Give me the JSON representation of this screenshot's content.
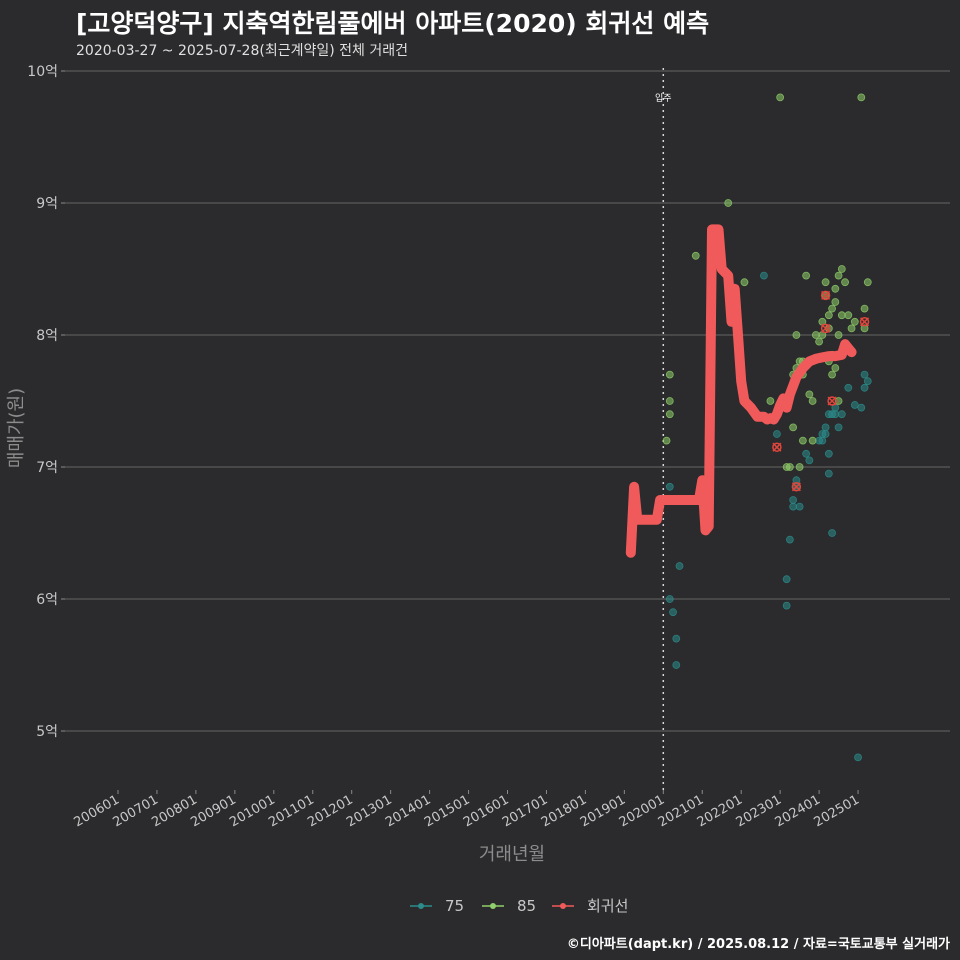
{
  "title": "[고양덕양구] 지축역한림풀에버 아파트(2020) 회귀선 예측",
  "subtitle": "2020-03-27 ~ 2025-07-28(최근계약일) 전체 거래건",
  "caption": "©디아파트(dapt.kr) / 2025.08.12 / 자료=국토교통부 실거래가",
  "colors": {
    "background": "#2b2a2c",
    "grid": "#5a5a5a",
    "s75": "#2a8d8c",
    "s85": "#8fd06a",
    "regression": "#f15a5a",
    "highlight": "#e0463c"
  },
  "chart_data": {
    "type": "scatter",
    "xlabel": "거래년월",
    "ylabel": "매매가(원)",
    "x_ticks": [
      "200601",
      "200701",
      "200801",
      "200901",
      "201001",
      "201101",
      "201201",
      "201301",
      "201401",
      "201501",
      "201601",
      "201701",
      "201801",
      "201901",
      "202001",
      "202101",
      "202201",
      "202301",
      "202401",
      "202501"
    ],
    "xlim": [
      "2005-01",
      "2025-12"
    ],
    "y_ticks": [
      5,
      6,
      7,
      8,
      9,
      10
    ],
    "y_tick_labels": [
      "5억",
      "6억",
      "7억",
      "8억",
      "9억",
      "10억"
    ],
    "y_unit": "억",
    "ylim": [
      4.6,
      10.1
    ],
    "grid": true,
    "vline": {
      "x": "2020-01",
      "label": "입주"
    },
    "legend": {
      "position": "bottom",
      "entries": [
        "75",
        "85",
        "회귀선"
      ]
    },
    "series": [
      {
        "name": "75",
        "points": [
          [
            "2020-03",
            6.85
          ],
          [
            "2020-03",
            6.0
          ],
          [
            "2020-04",
            5.9
          ],
          [
            "2020-05",
            5.7
          ],
          [
            "2020-05",
            5.5
          ],
          [
            "2020-06",
            6.25
          ],
          [
            "2022-08",
            8.45
          ],
          [
            "2022-12",
            7.25
          ],
          [
            "2023-03",
            6.15
          ],
          [
            "2023-03",
            5.95
          ],
          [
            "2023-04",
            6.45
          ],
          [
            "2023-05",
            6.75
          ],
          [
            "2023-05",
            6.7
          ],
          [
            "2023-06",
            6.9
          ],
          [
            "2023-06",
            6.85
          ],
          [
            "2023-07",
            6.7
          ],
          [
            "2023-09",
            7.1
          ],
          [
            "2023-10",
            7.05
          ],
          [
            "2024-01",
            7.2
          ],
          [
            "2024-02",
            7.2
          ],
          [
            "2024-02",
            7.25
          ],
          [
            "2024-03",
            7.3
          ],
          [
            "2024-03",
            7.25
          ],
          [
            "2024-04",
            7.1
          ],
          [
            "2024-04",
            7.4
          ],
          [
            "2024-04",
            6.95
          ],
          [
            "2024-05",
            7.4
          ],
          [
            "2024-05",
            6.5
          ],
          [
            "2024-06",
            7.4
          ],
          [
            "2024-06",
            7.45
          ],
          [
            "2024-07",
            7.3
          ],
          [
            "2024-08",
            7.4
          ],
          [
            "2024-10",
            7.6
          ],
          [
            "2024-12",
            7.47
          ],
          [
            "2025-01",
            4.8
          ],
          [
            "2025-02",
            7.45
          ],
          [
            "2025-03",
            7.6
          ],
          [
            "2025-03",
            7.7
          ],
          [
            "2025-04",
            7.65
          ]
        ]
      },
      {
        "name": "85",
        "points": [
          [
            "2020-02",
            7.2
          ],
          [
            "2020-03",
            7.4
          ],
          [
            "2020-03",
            7.5
          ],
          [
            "2020-03",
            7.7
          ],
          [
            "2020-11",
            8.6
          ],
          [
            "2021-09",
            9.0
          ],
          [
            "2022-02",
            8.4
          ],
          [
            "2022-10",
            7.5
          ],
          [
            "2023-01",
            9.8
          ],
          [
            "2023-03",
            7.0
          ],
          [
            "2023-04",
            7.0
          ],
          [
            "2023-05",
            7.7
          ],
          [
            "2023-05",
            7.3
          ],
          [
            "2023-06",
            7.75
          ],
          [
            "2023-06",
            8.0
          ],
          [
            "2023-07",
            7.8
          ],
          [
            "2023-07",
            7.0
          ],
          [
            "2023-08",
            7.2
          ],
          [
            "2023-08",
            7.8
          ],
          [
            "2023-08",
            7.7
          ],
          [
            "2023-09",
            8.45
          ],
          [
            "2023-10",
            7.55
          ],
          [
            "2023-11",
            7.5
          ],
          [
            "2023-11",
            7.2
          ],
          [
            "2023-12",
            8.0
          ],
          [
            "2024-01",
            7.95
          ],
          [
            "2024-02",
            8.1
          ],
          [
            "2024-02",
            8.0
          ],
          [
            "2024-03",
            8.3
          ],
          [
            "2024-03",
            8.4
          ],
          [
            "2024-04",
            8.15
          ],
          [
            "2024-04",
            7.8
          ],
          [
            "2024-04",
            8.05
          ],
          [
            "2024-05",
            8.2
          ],
          [
            "2024-05",
            7.85
          ],
          [
            "2024-05",
            7.7
          ],
          [
            "2024-06",
            8.35
          ],
          [
            "2024-06",
            8.25
          ],
          [
            "2024-06",
            7.75
          ],
          [
            "2024-07",
            8.45
          ],
          [
            "2024-07",
            8.0
          ],
          [
            "2024-07",
            7.5
          ],
          [
            "2024-08",
            8.5
          ],
          [
            "2024-08",
            8.15
          ],
          [
            "2024-09",
            8.4
          ],
          [
            "2024-10",
            8.15
          ],
          [
            "2024-11",
            8.05
          ],
          [
            "2024-12",
            8.1
          ],
          [
            "2025-02",
            9.8
          ],
          [
            "2025-03",
            8.2
          ],
          [
            "2025-03",
            8.05
          ],
          [
            "2025-04",
            8.4
          ]
        ]
      },
      {
        "name": "회귀선",
        "points": [
          [
            "2019-03",
            6.35
          ],
          [
            "2019-04",
            6.85
          ],
          [
            "2019-05",
            6.6
          ],
          [
            "2019-08",
            6.6
          ],
          [
            "2019-11",
            6.6
          ],
          [
            "2019-12",
            6.75
          ],
          [
            "2020-02",
            6.75
          ],
          [
            "2020-04",
            6.75
          ],
          [
            "2020-06",
            6.75
          ],
          [
            "2020-08",
            6.75
          ],
          [
            "2020-10",
            6.75
          ],
          [
            "2020-12",
            6.75
          ],
          [
            "2021-01",
            6.9
          ],
          [
            "2021-02",
            6.52
          ],
          [
            "2021-03",
            6.55
          ],
          [
            "2021-04",
            8.8
          ],
          [
            "2021-06",
            8.8
          ],
          [
            "2021-07",
            8.5
          ],
          [
            "2021-09",
            8.45
          ],
          [
            "2021-10",
            8.1
          ],
          [
            "2021-11",
            8.35
          ],
          [
            "2021-12",
            8.0
          ],
          [
            "2022-01",
            7.65
          ],
          [
            "2022-02",
            7.5
          ],
          [
            "2022-04",
            7.45
          ],
          [
            "2022-06",
            7.38
          ],
          [
            "2022-08",
            7.38
          ],
          [
            "2022-09",
            7.36
          ],
          [
            "2022-10",
            7.37
          ],
          [
            "2022-11",
            7.36
          ],
          [
            "2022-12",
            7.4
          ],
          [
            "2023-01",
            7.47
          ],
          [
            "2023-02",
            7.52
          ],
          [
            "2023-03",
            7.45
          ],
          [
            "2023-04",
            7.55
          ],
          [
            "2023-06",
            7.68
          ],
          [
            "2023-08",
            7.75
          ],
          [
            "2023-10",
            7.8
          ],
          [
            "2023-12",
            7.82
          ],
          [
            "2024-02",
            7.83
          ],
          [
            "2024-04",
            7.84
          ],
          [
            "2024-06",
            7.84
          ],
          [
            "2024-08",
            7.85
          ],
          [
            "2024-09",
            7.93
          ],
          [
            "2024-10",
            7.9
          ],
          [
            "2024-11",
            7.87
          ]
        ]
      }
    ],
    "highlights": [
      [
        "2022-12",
        7.15
      ],
      [
        "2023-06",
        6.85
      ],
      [
        "2024-03",
        8.3
      ],
      [
        "2024-03",
        8.05
      ],
      [
        "2024-05",
        7.5
      ],
      [
        "2025-03",
        8.1
      ]
    ]
  }
}
